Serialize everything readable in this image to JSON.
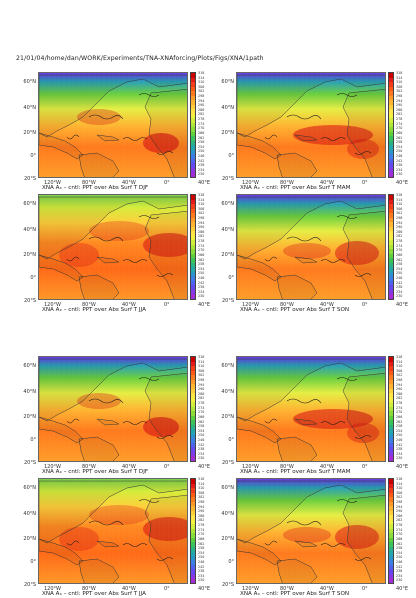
{
  "header": "21/01/04/home/dan/WORK/Experiments/TNA-XNAforcing/Plots/Figs/XNA/1path",
  "lat_labels": [
    "60°N",
    "40°N",
    "20°N",
    "0°",
    "20°S"
  ],
  "lon_labels": [
    "120°W",
    "80°W",
    "40°W",
    "0°",
    "40°E"
  ],
  "colorbar_ticks": [
    "318",
    "314",
    "310",
    "306",
    "302",
    "298",
    "294",
    "290",
    "286",
    "282",
    "278",
    "274",
    "270",
    "266",
    "262",
    "258",
    "254",
    "250",
    "246",
    "242",
    "238",
    "234",
    "230"
  ],
  "colorbar_colors": [
    "#cc0000",
    "#e41b1b",
    "#f23c1a",
    "#ff5a14",
    "#ff7a1e",
    "#ff9a28",
    "#ffb432",
    "#ffce3c",
    "#ffe646",
    "#f4f040",
    "#d2ee3c",
    "#aee63a",
    "#8adc38",
    "#5ed03c",
    "#3ac45a",
    "#2ab482",
    "#20a8aa",
    "#2896cc",
    "#3a7ee6",
    "#4e62f0",
    "#6648f0",
    "#8438e6",
    "#a22cd8"
  ],
  "panels": [
    {
      "caption": "XNA Aₓ – cntl: PPT over Abs Surf T  DJF"
    },
    {
      "caption": "XNA Aₓ – cntl: PPT over Abs Surf T  MAM"
    },
    {
      "caption": "XNA Aₓ – cntl: PPT over Abs Surf T  JJA"
    },
    {
      "caption": "XNA Aₓ – cntl: PPT over Abs Surf T  SON"
    },
    {
      "caption": "XNA Aₓ – cntl: PPT over Abs Surf T  DJF"
    },
    {
      "caption": "XNA Aₓ – cntl: PPT over Abs Surf T  MAM"
    },
    {
      "caption": "XNA Aₓ – cntl: PPT over Abs Surf T  JJA"
    },
    {
      "caption": "XNA Aₓ – cntl: PPT over Abs Surf T  SON"
    }
  ]
}
